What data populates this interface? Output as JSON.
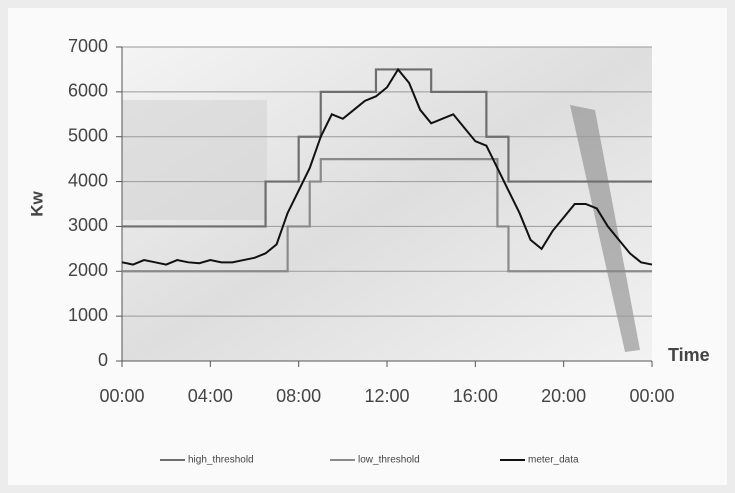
{
  "chart_data": {
    "type": "line",
    "x_label": "Time",
    "y_label": "Kw",
    "x": [
      0,
      0.5,
      1,
      1.5,
      2,
      2.5,
      3,
      3.5,
      4,
      4.5,
      5,
      5.5,
      6,
      6.5,
      7,
      7.5,
      8,
      8.5,
      9,
      9.5,
      10,
      10.5,
      11,
      11.5,
      12,
      12.5,
      13,
      13.5,
      14,
      14.5,
      15,
      15.5,
      16,
      16.5,
      17,
      17.5,
      18,
      18.5,
      19,
      19.5,
      20,
      20.5,
      21,
      21.5,
      22,
      22.5,
      23,
      23.5,
      24
    ],
    "xlim": [
      0,
      24
    ],
    "xticks": [
      {
        "value": 0,
        "label": "00:00"
      },
      {
        "value": 4,
        "label": "04:00"
      },
      {
        "value": 8,
        "label": "08:00"
      },
      {
        "value": 12,
        "label": "12:00"
      },
      {
        "value": 16,
        "label": "16:00"
      },
      {
        "value": 20,
        "label": "20:00"
      },
      {
        "value": 24,
        "label": "00:00"
      }
    ],
    "ylim": [
      0,
      7000
    ],
    "yticks": [
      0,
      1000,
      2000,
      3000,
      4000,
      5000,
      6000,
      7000
    ],
    "grid": true,
    "legend": "bottom",
    "series": [
      {
        "name": "high_threshold",
        "color": "#6e6e6e",
        "step": true,
        "values": [
          3000,
          3000,
          3000,
          3000,
          3000,
          3000,
          3000,
          3000,
          3000,
          3000,
          3000,
          3000,
          3000,
          4000,
          4000,
          4000,
          5000,
          5000,
          6000,
          6000,
          6000,
          6000,
          6000,
          6500,
          6500,
          6500,
          6500,
          6500,
          6000,
          6000,
          6000,
          6000,
          6000,
          5000,
          5000,
          4000,
          4000,
          4000,
          4000,
          4000,
          4000,
          4000,
          4000,
          4000,
          4000,
          4000,
          4000,
          4000,
          4000
        ]
      },
      {
        "name": "low_threshold",
        "color": "#8a8a8a",
        "step": true,
        "values": [
          2000,
          2000,
          2000,
          2000,
          2000,
          2000,
          2000,
          2000,
          2000,
          2000,
          2000,
          2000,
          2000,
          2000,
          2000,
          3000,
          3000,
          4000,
          4500,
          4500,
          4500,
          4500,
          4500,
          4500,
          4500,
          4500,
          4500,
          4500,
          4500,
          4500,
          4500,
          4500,
          4500,
          4500,
          3000,
          2000,
          2000,
          2000,
          2000,
          2000,
          2000,
          2000,
          2000,
          2000,
          2000,
          2000,
          2000,
          2000,
          2000
        ]
      },
      {
        "name": "meter_data",
        "color": "#111111",
        "step": false,
        "values": [
          2200,
          2150,
          2250,
          2200,
          2150,
          2250,
          2200,
          2180,
          2250,
          2200,
          2200,
          2250,
          2300,
          2400,
          2600,
          3300,
          3800,
          4300,
          5000,
          5500,
          5400,
          5600,
          5800,
          5900,
          6100,
          6500,
          6200,
          5600,
          5300,
          5400,
          5500,
          5200,
          4900,
          4800,
          4300,
          3800,
          3300,
          2700,
          2500,
          2900,
          3200,
          3500,
          3500,
          3400,
          3000,
          2700,
          2400,
          2200,
          2150
        ]
      }
    ]
  }
}
